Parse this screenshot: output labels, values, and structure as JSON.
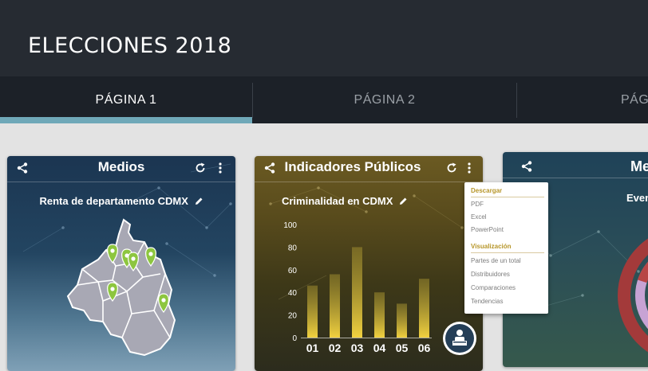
{
  "app": {
    "title": "ELECCIONES 2018"
  },
  "tabs": [
    {
      "label": "PÁGINA 1"
    },
    {
      "label": "PÁGINA 2"
    },
    {
      "label": "PÁG"
    }
  ],
  "cards": {
    "medios": {
      "title": "Medios",
      "subtitle": "Renta de departamento CDMX"
    },
    "indicadores": {
      "title": "Indicadores Públicos",
      "subtitle": "Criminalidad en CDMX"
    },
    "third": {
      "title": "Me",
      "subtitle": "Even"
    }
  },
  "menu": {
    "section_download": "Descargar",
    "download_items": [
      "PDF",
      "Excel",
      "PowerPoint"
    ],
    "section_view": "Visualización",
    "view_items": [
      "Partes de un total",
      "Distribuidores",
      "Comparaciones",
      "Tendencias"
    ]
  },
  "chart_data": {
    "type": "bar",
    "title": "Criminalidad en CDMX",
    "categories": [
      "01",
      "02",
      "03",
      "04",
      "05",
      "06"
    ],
    "values": [
      46,
      56,
      80,
      40,
      30,
      52
    ],
    "ylim": [
      0,
      100
    ],
    "yticks": [
      0,
      20,
      40,
      60,
      80,
      100
    ],
    "xlabel": "",
    "ylabel": "",
    "colors": {
      "bar_top": "#e8c33a",
      "bar_bottom": "#f3d547"
    }
  },
  "colors": {
    "appbar": "#262b32",
    "tab_indicator": "#6fa8b8",
    "menu_section": "#b7962a",
    "pin": "#8dc63f"
  }
}
